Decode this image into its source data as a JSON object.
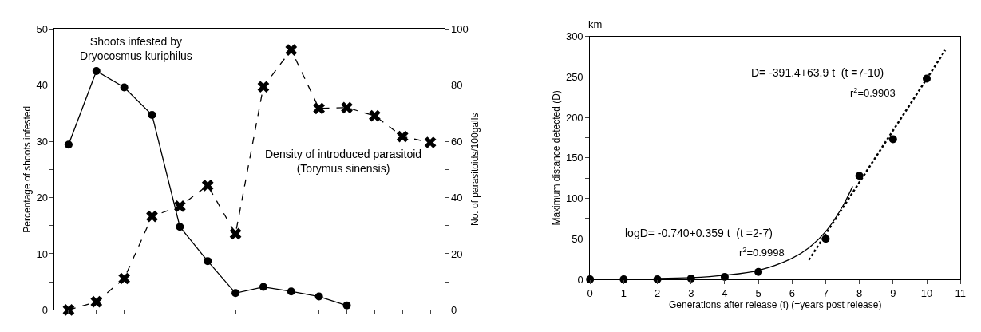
{
  "chart_data": [
    {
      "type": "line",
      "categories": [
        null,
        null,
        null,
        null,
        null,
        null,
        null,
        null,
        null,
        null,
        null,
        null,
        null,
        null
      ],
      "ylabel": "Percentage of shoots infested",
      "y2label": "No. of parasitoids/100galls",
      "series": [
        {
          "color": "#000000",
          "marker": "circle",
          "line_style": "solid",
          "values": [
            29.4,
            42.5,
            39.6,
            34.7,
            14.8,
            8.7,
            3.0,
            4.1,
            3.3,
            2.4,
            0.8,
            null,
            null,
            null
          ]
        },
        {
          "color": "#000000",
          "marker": "cross",
          "line_style": "dashed",
          "axis": "y2",
          "values": [
            0,
            2.9,
            11.2,
            33.3,
            36.9,
            44.3,
            27.1,
            79.4,
            92.5,
            71.7,
            72.0,
            69.1,
            61.7,
            59.6
          ]
        }
      ],
      "ylim": [
        0,
        50
      ],
      "yticks": [
        0,
        {
          "value": 5,
          "label": null
        },
        10,
        {
          "value": 15,
          "label": null
        },
        20,
        {
          "value": 25,
          "label": null
        },
        30,
        {
          "value": 35,
          "label": null
        },
        40,
        {
          "value": 45,
          "label": null
        },
        50
      ],
      "y2lim": [
        0,
        100
      ],
      "y2ticks": [
        0,
        {
          "value": 10,
          "label": null
        },
        20,
        {
          "value": 30,
          "label": null
        },
        40,
        {
          "value": 50,
          "label": null
        },
        60,
        {
          "value": 70,
          "label": null
        },
        80,
        {
          "value": 90,
          "label": null
        },
        100
      ],
      "tick_labels": "y",
      "annotations": [
        "Shoots infested by\nDryocosmus kuriphilus",
        "Density of introduced parasitoid\n(Torymus sinensis)"
      ]
    },
    {
      "type": "scatter",
      "xlabel": "Generations after release (t) (=years post release)",
      "ylabel": "Maximum distance detected (D)",
      "x": [
        0,
        1,
        2,
        3,
        4,
        5,
        7,
        8,
        9,
        10
      ],
      "series": [
        {
          "color": "#000000",
          "marker": "circle",
          "values": [
            0,
            0,
            0,
            1,
            3,
            9,
            50,
            128,
            173,
            248
          ]
        },
        {
          "type": "line",
          "color": "#000000",
          "marker": "none",
          "line_style": "solid",
          "x": [
            2,
            3,
            4,
            5,
            6,
            6.5,
            7,
            7.5,
            7.8
          ],
          "values": [
            1,
            2,
            5,
            11,
            26,
            39,
            59,
            90,
            115
          ]
        },
        {
          "type": "line",
          "color": "#000000",
          "marker": "none",
          "line_style": "dotted",
          "x": [
            6.5,
            10.55
          ],
          "values": [
            24,
            283
          ]
        }
      ],
      "xlim": [
        0,
        11
      ],
      "xticks": [
        0,
        1,
        2,
        3,
        4,
        5,
        6,
        7,
        8,
        9,
        10,
        11
      ],
      "ylim": [
        0,
        300
      ],
      "yticks": [
        0,
        {
          "value": 25,
          "label": null
        },
        50,
        {
          "value": 75,
          "label": null
        },
        100,
        {
          "value": 125,
          "label": null
        },
        150,
        {
          "value": 175,
          "label": null
        },
        200,
        {
          "value": 225,
          "label": null
        },
        250,
        {
          "value": 275,
          "label": null
        },
        300
      ],
      "annotations": [
        "km",
        "D= -391.4+63.9 t  (t =7-10)",
        "r$^{2}$=0.9903",
        "logD= -0.740+0.359 t  (t =2-7)",
        "r$^{2}$=0.9998"
      ]
    }
  ]
}
